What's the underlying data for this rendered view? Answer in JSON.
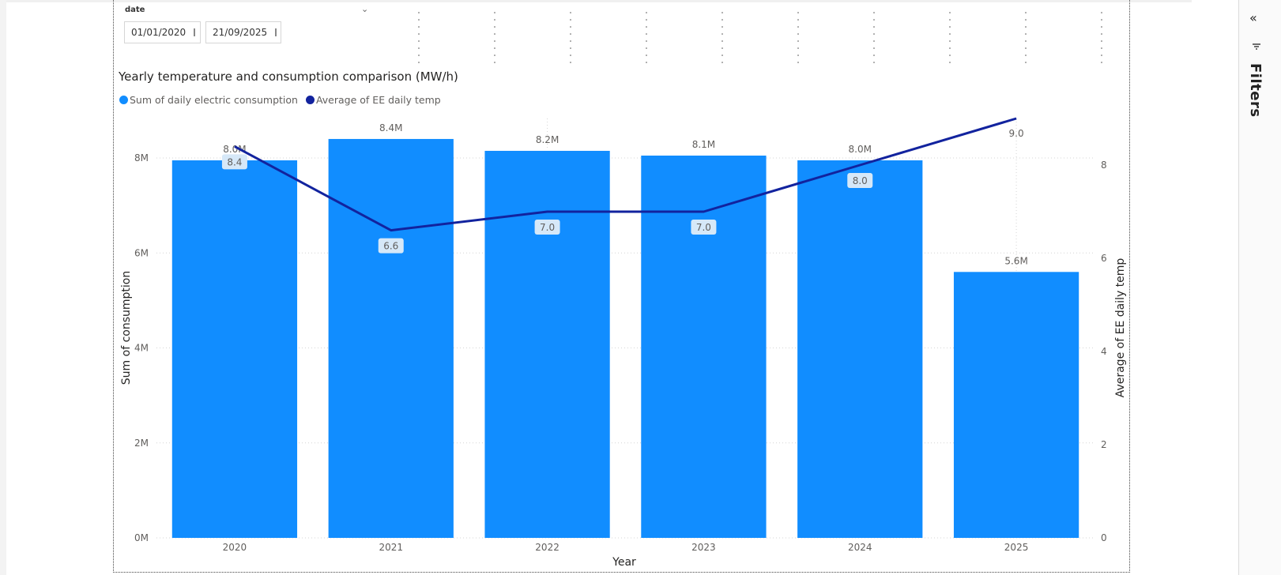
{
  "slicer": {
    "title": "date",
    "start": "01/01/2020",
    "end": "21/09/2025"
  },
  "side_panel": {
    "filters_label": "Filters",
    "collapse_icon": "double-chevron-left-icon",
    "filter_icon": "filter-icon"
  },
  "chart_data": {
    "type": "bar",
    "title": "Yearly temperature and consumption comparison (MW/h)",
    "xlabel": "Year",
    "ylabel": "Sum of consumption",
    "y2label": "Average of EE daily temp",
    "categories": [
      "2020",
      "2021",
      "2022",
      "2023",
      "2024",
      "2025"
    ],
    "ylim": [
      0,
      8000000
    ],
    "yticks": [
      "0M",
      "2M",
      "4M",
      "6M",
      "8M"
    ],
    "y2lim": [
      0,
      8
    ],
    "y2ticks": [
      "0",
      "2",
      "4",
      "6",
      "8"
    ],
    "legend_position": "top-left",
    "grid": true,
    "series": [
      {
        "name": "Sum of daily electric consumption",
        "type": "bar",
        "axis": "left",
        "color": "#118DFF",
        "values": [
          7950000,
          8400000,
          8150000,
          8050000,
          7950000,
          5600000
        ],
        "labels": [
          "8.0M",
          "8.4M",
          "8.2M",
          "8.1M",
          "8.0M",
          "5.6M"
        ]
      },
      {
        "name": "Average of EE daily temp",
        "type": "line",
        "axis": "right",
        "color": "#12239E",
        "values": [
          8.4,
          6.6,
          7.0,
          7.0,
          8.0,
          9.0
        ],
        "labels": [
          "8.4",
          "6.6",
          "7.0",
          "7.0",
          "8.0",
          "9.0"
        ]
      }
    ]
  }
}
